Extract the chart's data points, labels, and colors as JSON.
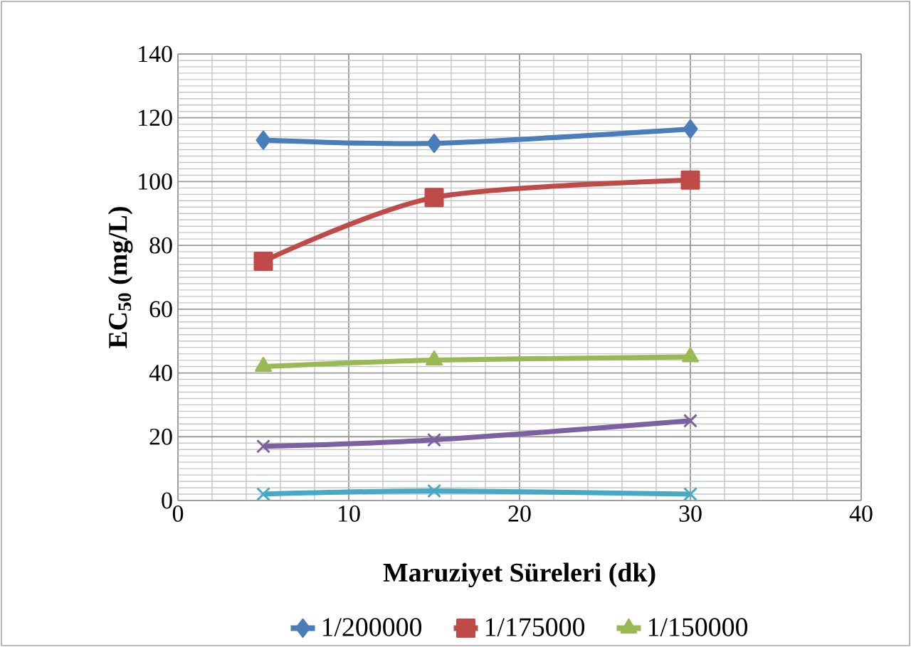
{
  "chart_data": {
    "type": "line",
    "xlabel": "Maruziyet Süreleri (dk)",
    "ylabel": "EC$_{50}$ (mg/L)",
    "x": [
      5,
      15,
      30
    ],
    "series": [
      {
        "name": "1/200000",
        "color": "#4a7ebb",
        "marker": "diamond",
        "values": [
          113,
          112,
          116.5
        ]
      },
      {
        "name": "1/175000",
        "color": "#be4b48",
        "marker": "square",
        "values": [
          75,
          95,
          100.5
        ]
      },
      {
        "name": "1/150000",
        "color": "#98b954",
        "marker": "triangle",
        "values": [
          42,
          44,
          45
        ]
      },
      {
        "color": "#7d60a0",
        "marker": "cross",
        "values": [
          17,
          19,
          25
        ]
      },
      {
        "color": "#46aac5",
        "marker": "cross",
        "values": [
          2,
          3,
          2
        ]
      }
    ],
    "xlim": [
      0,
      40
    ],
    "xticks": [
      0,
      10,
      20,
      30,
      40
    ],
    "ylim": [
      0,
      140
    ],
    "yticks": [
      0,
      20,
      40,
      60,
      80,
      100,
      120,
      140
    ],
    "grid": true,
    "legend": "bottom",
    "line_style": "solid"
  }
}
